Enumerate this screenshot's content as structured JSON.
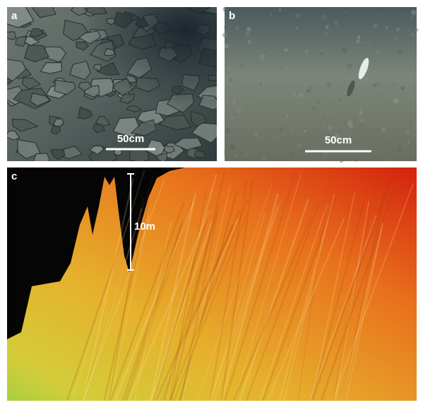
{
  "panels": [
    {
      "label": "a",
      "scale_bar": "50cm"
    },
    {
      "label": "b",
      "scale_bar": "50cm"
    },
    {
      "label": "c",
      "scale_bar": "10m"
    }
  ]
}
